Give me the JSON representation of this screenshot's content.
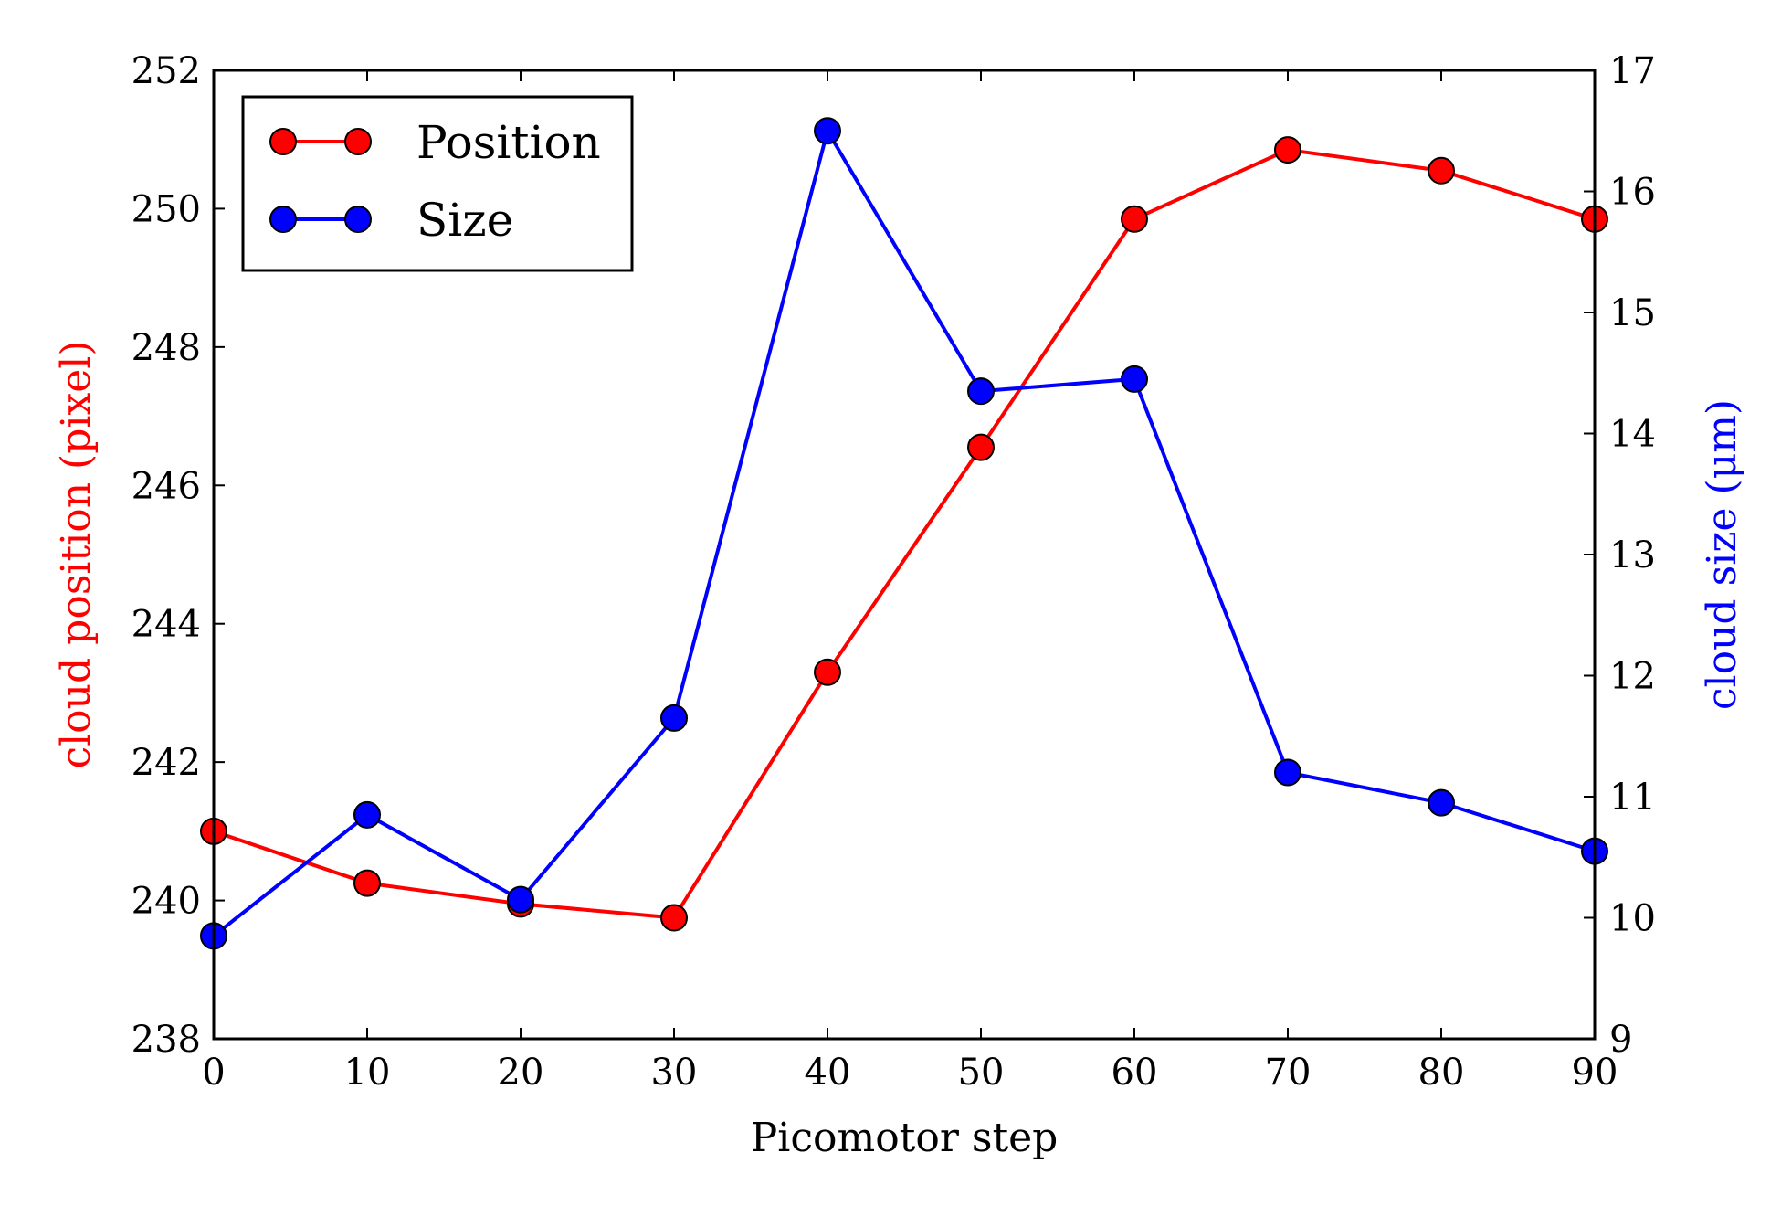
{
  "chart_data": {
    "type": "line",
    "x": [
      0,
      10,
      20,
      30,
      40,
      50,
      60,
      70,
      80,
      90
    ],
    "xlabel": "Picomotor step",
    "xlim": [
      0,
      90
    ],
    "xticks": [
      "0",
      "10",
      "20",
      "30",
      "40",
      "50",
      "60",
      "70",
      "80",
      "90"
    ],
    "y_left": {
      "label": "cloud position (pixel)",
      "color": "#ff0000",
      "lim": [
        238,
        252
      ],
      "ticks": [
        "238",
        "240",
        "242",
        "244",
        "246",
        "248",
        "250",
        "252"
      ]
    },
    "y_right": {
      "label": "cloud size (μm)",
      "color": "#0000ff",
      "lim": [
        9,
        17
      ],
      "ticks": [
        "9",
        "10",
        "11",
        "12",
        "13",
        "14",
        "15",
        "16",
        "17"
      ]
    },
    "series": [
      {
        "name": "Position",
        "axis": "left",
        "color": "#ff0000",
        "values": [
          241.0,
          240.25,
          239.95,
          239.75,
          243.3,
          246.55,
          249.85,
          250.85,
          250.55,
          249.85
        ]
      },
      {
        "name": "Size",
        "axis": "right",
        "color": "#0000ff",
        "values": [
          9.85,
          10.85,
          10.15,
          11.65,
          16.5,
          14.35,
          14.45,
          11.2,
          10.95,
          10.55
        ]
      }
    ],
    "legend": "upper-left",
    "grid": false
  }
}
